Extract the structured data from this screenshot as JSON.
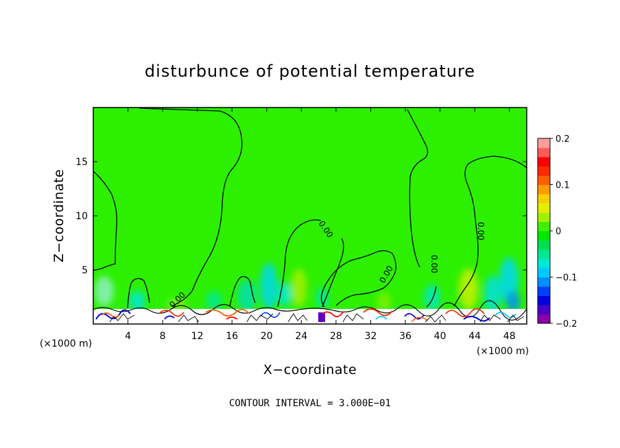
{
  "chart_data": {
    "type": "heatmap",
    "title": "disturbunce of potential temperature",
    "xlabel": "X−coordinate",
    "ylabel": "Z−coordinate",
    "x_unit": "(×1000 m)",
    "y_unit": "(×1000 m)",
    "xlim": [
      0,
      50
    ],
    "ylim": [
      0,
      20
    ],
    "x_ticks": [
      4,
      8,
      12,
      16,
      20,
      24,
      28,
      32,
      36,
      40,
      44,
      48
    ],
    "y_ticks": [
      5,
      10,
      15
    ],
    "colorbar": {
      "range": [
        -0.2,
        0.2
      ],
      "tick_values": [
        0.2,
        0.1,
        0,
        -0.1,
        -0.2
      ],
      "tick_labels": [
        "0.2",
        "0.1",
        "0",
        "−0.1",
        "−0.2"
      ],
      "colors": [
        "#8a00a8",
        "#4b00c8",
        "#0000e0",
        "#0040ff",
        "#0090ff",
        "#00c8ff",
        "#00e8d8",
        "#00e890",
        "#00e050",
        "#00e800",
        "#40f000",
        "#a0f000",
        "#e0f000",
        "#f8d000",
        "#ff9a00",
        "#ff6000",
        "#ff2800",
        "#ff0000",
        "#ff5a5a",
        "#ff9c9c"
      ]
    },
    "background_color": "#2cf000",
    "contour_level_label": "0.00",
    "contour_interval_text": "CONTOUR INTERVAL = 3.000E−01"
  }
}
